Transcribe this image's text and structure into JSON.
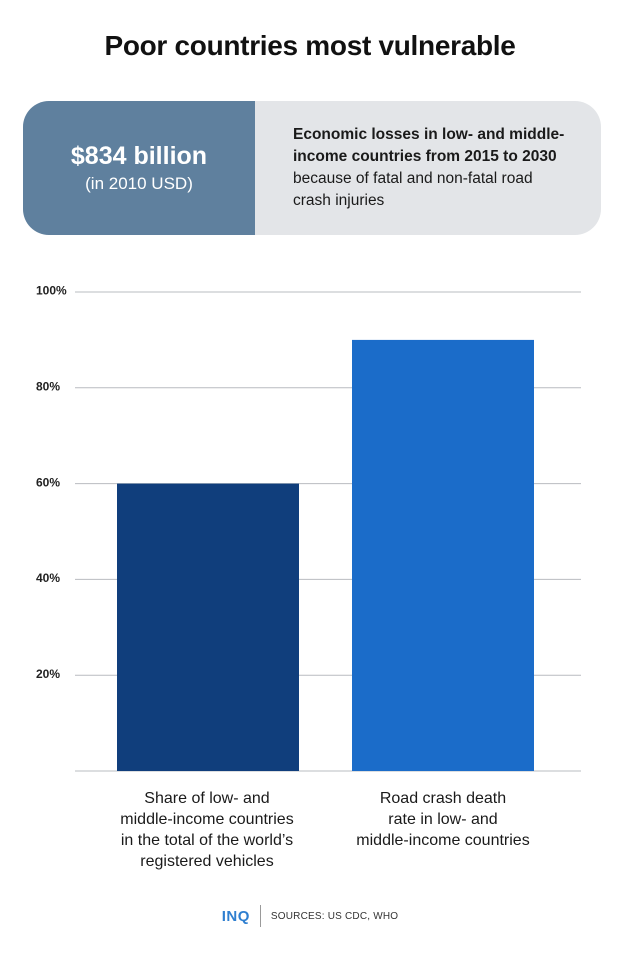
{
  "title": "Poor countries most vulnerable",
  "banner": {
    "amount": "$834 billion",
    "amount_note": "(in 2010 USD)",
    "text_bold": "Economic losses in low- and middle-income countries from 2015 to 2030",
    "text_regular": " because of fatal and non-fatal road crash injuries"
  },
  "colors": {
    "bar_1": "#103e7c",
    "bar_2": "#1b6cc9",
    "banner_left": "#5f809e",
    "banner_right": "#e3e5e8",
    "logo": "#2f7fd0"
  },
  "chart_data": {
    "type": "bar",
    "categories": [
      "Share of low- and middle-income countries in the total of the world’s registered vehicles",
      "Road crash death rate in low- and middle-income countries"
    ],
    "category_lines": [
      [
        "Share of low- and",
        "middle-income countries",
        "in the total of the world’s",
        "registered vehicles"
      ],
      [
        "Road crash death",
        "rate in low- and",
        "middle-income countries"
      ]
    ],
    "values": [
      60,
      90
    ],
    "ylim": [
      0,
      100
    ],
    "yticks": [
      20,
      40,
      60,
      80,
      100
    ],
    "ytick_labels": [
      "20%",
      "40%",
      "60%",
      "80%",
      "100%"
    ],
    "grid": true
  },
  "footer": {
    "logo": "INQ",
    "sources": "SOURCES: US CDC, WHO"
  }
}
